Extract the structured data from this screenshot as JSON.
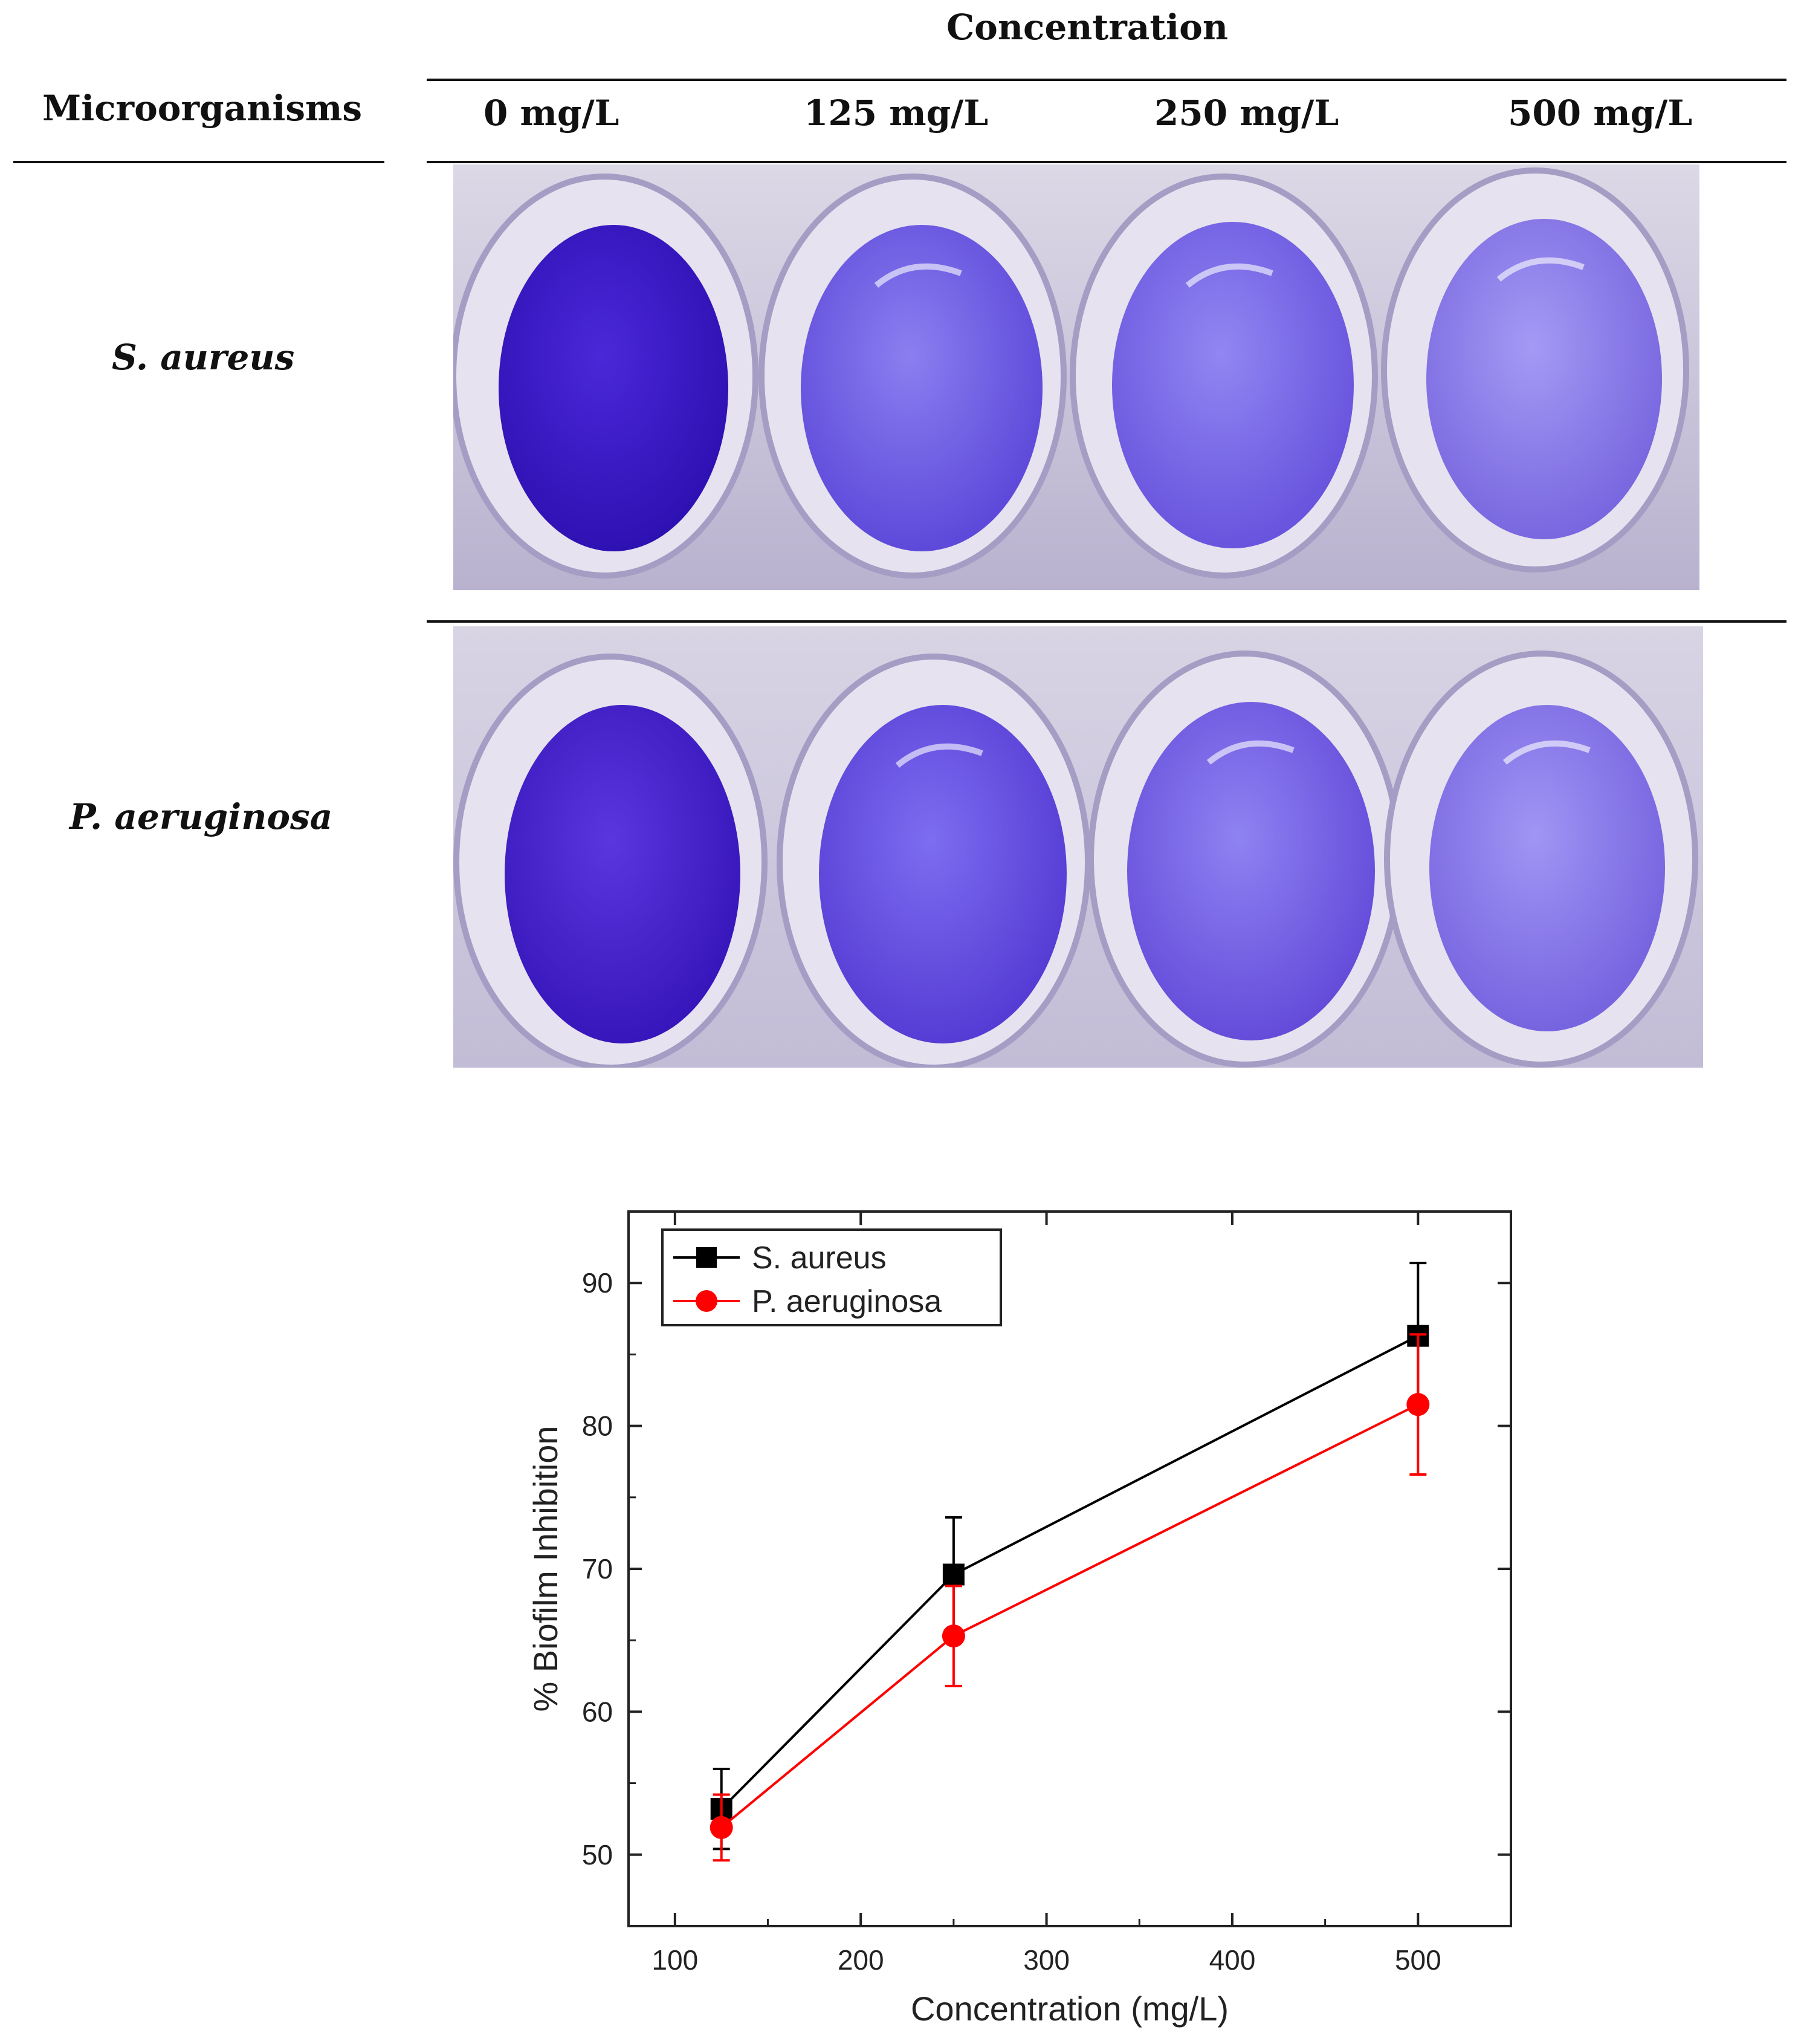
{
  "table": {
    "header_group": "Concentration",
    "row_header": "Microorganisms",
    "columns": [
      "0 mg/L",
      "125 mg/L",
      "250 mg/L",
      "500 mg/L"
    ],
    "rows": [
      "S. aureus",
      "P. aeruginosa"
    ]
  },
  "colors": {
    "well_dark": "#3b16c8",
    "well_light": "#7a6fe6",
    "plate": "#cfcbd8",
    "s_aureus": "#000000",
    "p_aeruginosa": "#ff0000"
  },
  "chart_data": {
    "type": "line",
    "xlabel": "Concentration (mg/L)",
    "ylabel": "% Biofilm Inhibition",
    "xlim": [
      75,
      550
    ],
    "ylim": [
      45,
      95
    ],
    "xticks": [
      100,
      200,
      300,
      400,
      500
    ],
    "yticks": [
      50,
      60,
      70,
      80,
      90
    ],
    "legend_position": "top-left",
    "grid": false,
    "series": [
      {
        "name": "S. aureus",
        "color": "#000000",
        "marker": "square",
        "x": [
          125,
          250,
          500
        ],
        "y": [
          53.2,
          69.6,
          86.3
        ],
        "err": [
          2.8,
          4.0,
          5.1
        ]
      },
      {
        "name": "P. aeruginosa",
        "color": "#ff0000",
        "marker": "circle",
        "x": [
          125,
          250,
          500
        ],
        "y": [
          51.9,
          65.3,
          81.5
        ],
        "err": [
          2.3,
          3.5,
          4.9
        ]
      }
    ]
  }
}
